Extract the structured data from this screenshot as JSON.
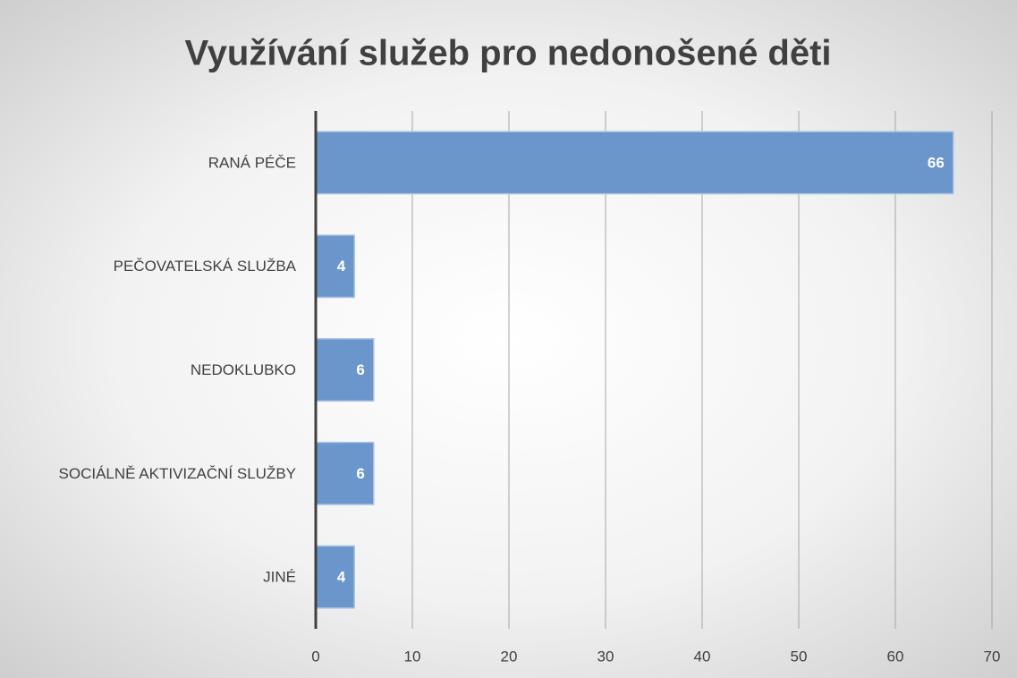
{
  "chart_data": {
    "type": "bar",
    "orientation": "horizontal",
    "title": "Využívání služeb pro nedonošené děti",
    "categories": [
      "RANÁ PÉČE",
      "PEČOVATELSKÁ SLUŽBA",
      "NEDOKLUBKO",
      "SOCIÁLNĚ AKTIVIZAČNÍ SLUŽBY",
      "JINÉ"
    ],
    "values": [
      66,
      4,
      6,
      6,
      4
    ],
    "color": "#6a96cc",
    "data_labels": true,
    "xlim": [
      0,
      70
    ],
    "xticks": [
      0,
      10,
      20,
      30,
      40,
      50,
      60,
      70
    ],
    "grid": true
  }
}
